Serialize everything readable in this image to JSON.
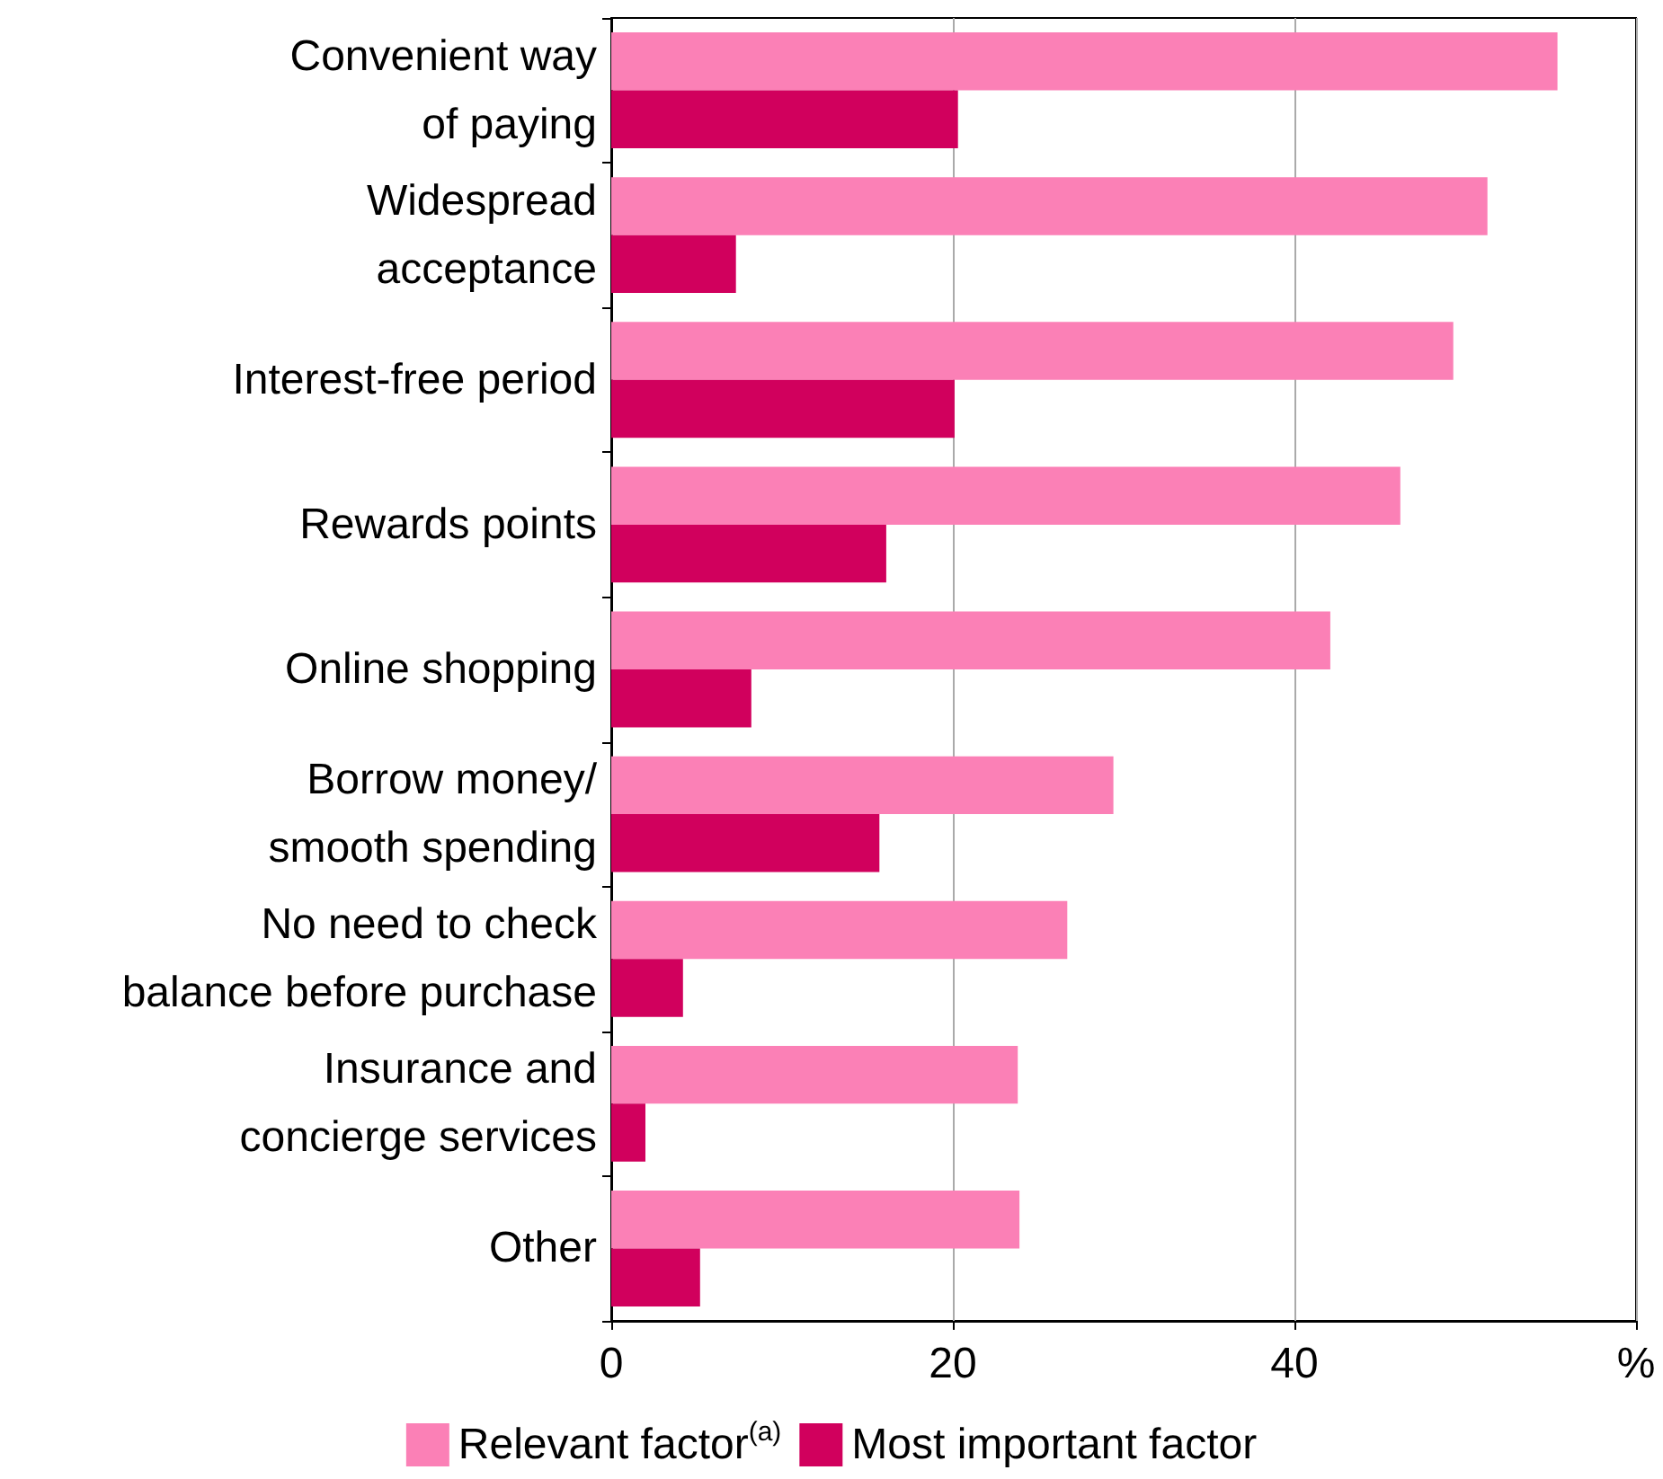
{
  "chart_data": {
    "type": "bar",
    "orientation": "horizontal",
    "categories": [
      "Convenient way\nof paying",
      "Widespread\nacceptance",
      "Interest-free period",
      "Rewards points",
      "Online shopping",
      "Borrow money/\nsmooth spending",
      "No need to check\nbalance before purchase",
      "Insurance and\nconcierge services",
      "Other"
    ],
    "series": [
      {
        "name": "Relevant factor$^{(a)}$",
        "color": "#fb80b6",
        "values": [
          55.4,
          51.3,
          49.3,
          46.2,
          42.1,
          29.4,
          26.7,
          23.8,
          23.9
        ]
      },
      {
        "name": "Most important factor",
        "color": "#d1005d",
        "values": [
          20.3,
          7.3,
          20.1,
          16.1,
          8.2,
          15.7,
          4.2,
          2.0,
          5.2
        ]
      }
    ],
    "xlim": [
      0,
      60
    ],
    "xticks": [
      0,
      20,
      40,
      {
        "value": 60,
        "label": "%"
      }
    ],
    "grid": "x",
    "legend": "bottom"
  }
}
